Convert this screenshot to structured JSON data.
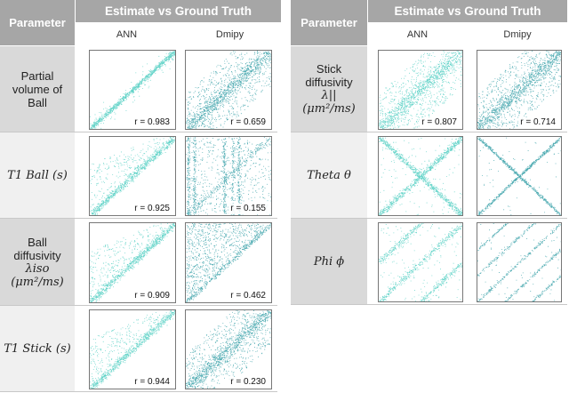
{
  "header": {
    "parameter": "Parameter",
    "group": "Estimate vs Ground Truth",
    "col_ann": "ANN",
    "col_dmipy": "Dmipy"
  },
  "colors": {
    "ann": "#2ec4b6",
    "dmipy": "#0e8c96",
    "header_bg": "#a6a6a6",
    "param_bg": "#d9d9d9"
  },
  "left_table": {
    "rows": [
      {
        "param_lines": [
          "Partial",
          "volume of",
          "Ball"
        ],
        "ann_r": "r = 0.983",
        "dmipy_r": "r = 0.659",
        "pattern_ann": "diag-tight",
        "pattern_dmipy": "diag-wide"
      },
      {
        "param_lines": [
          "T1 Ball (s)"
        ],
        "ann_r": "r = 0.925",
        "dmipy_r": "r = 0.155",
        "pattern_ann": "diag-med",
        "pattern_dmipy": "vertical-streaks"
      },
      {
        "param_lines": [
          "Ball",
          "diffusivity",
          "λiso",
          "(μm²/ms)"
        ],
        "ann_r": "r = 0.909",
        "dmipy_r": "r = 0.462",
        "pattern_ann": "diag-med",
        "pattern_dmipy": "upper-fill"
      },
      {
        "param_lines": [
          "T1 Stick (s)"
        ],
        "ann_r": "r = 0.944",
        "dmipy_r": "r = 0.230",
        "pattern_ann": "diag-med",
        "pattern_dmipy": "diag-wide"
      }
    ]
  },
  "right_table": {
    "rows": [
      {
        "param_lines": [
          "Stick",
          "diffusivity",
          "λ||",
          "(μm²/ms)"
        ],
        "ann_r": "r = 0.807",
        "dmipy_r": "r = 0.714",
        "pattern_ann": "diag-wide",
        "pattern_dmipy": "diag-wide"
      },
      {
        "param_lines": [
          "Theta θ"
        ],
        "ann_r": "",
        "dmipy_r": "",
        "pattern_ann": "cross",
        "pattern_dmipy": "cross-thin"
      },
      {
        "param_lines": [
          "Phi ϕ"
        ],
        "ann_r": "",
        "dmipy_r": "",
        "pattern_ann": "phi",
        "pattern_dmipy": "phi-thin"
      }
    ]
  }
}
